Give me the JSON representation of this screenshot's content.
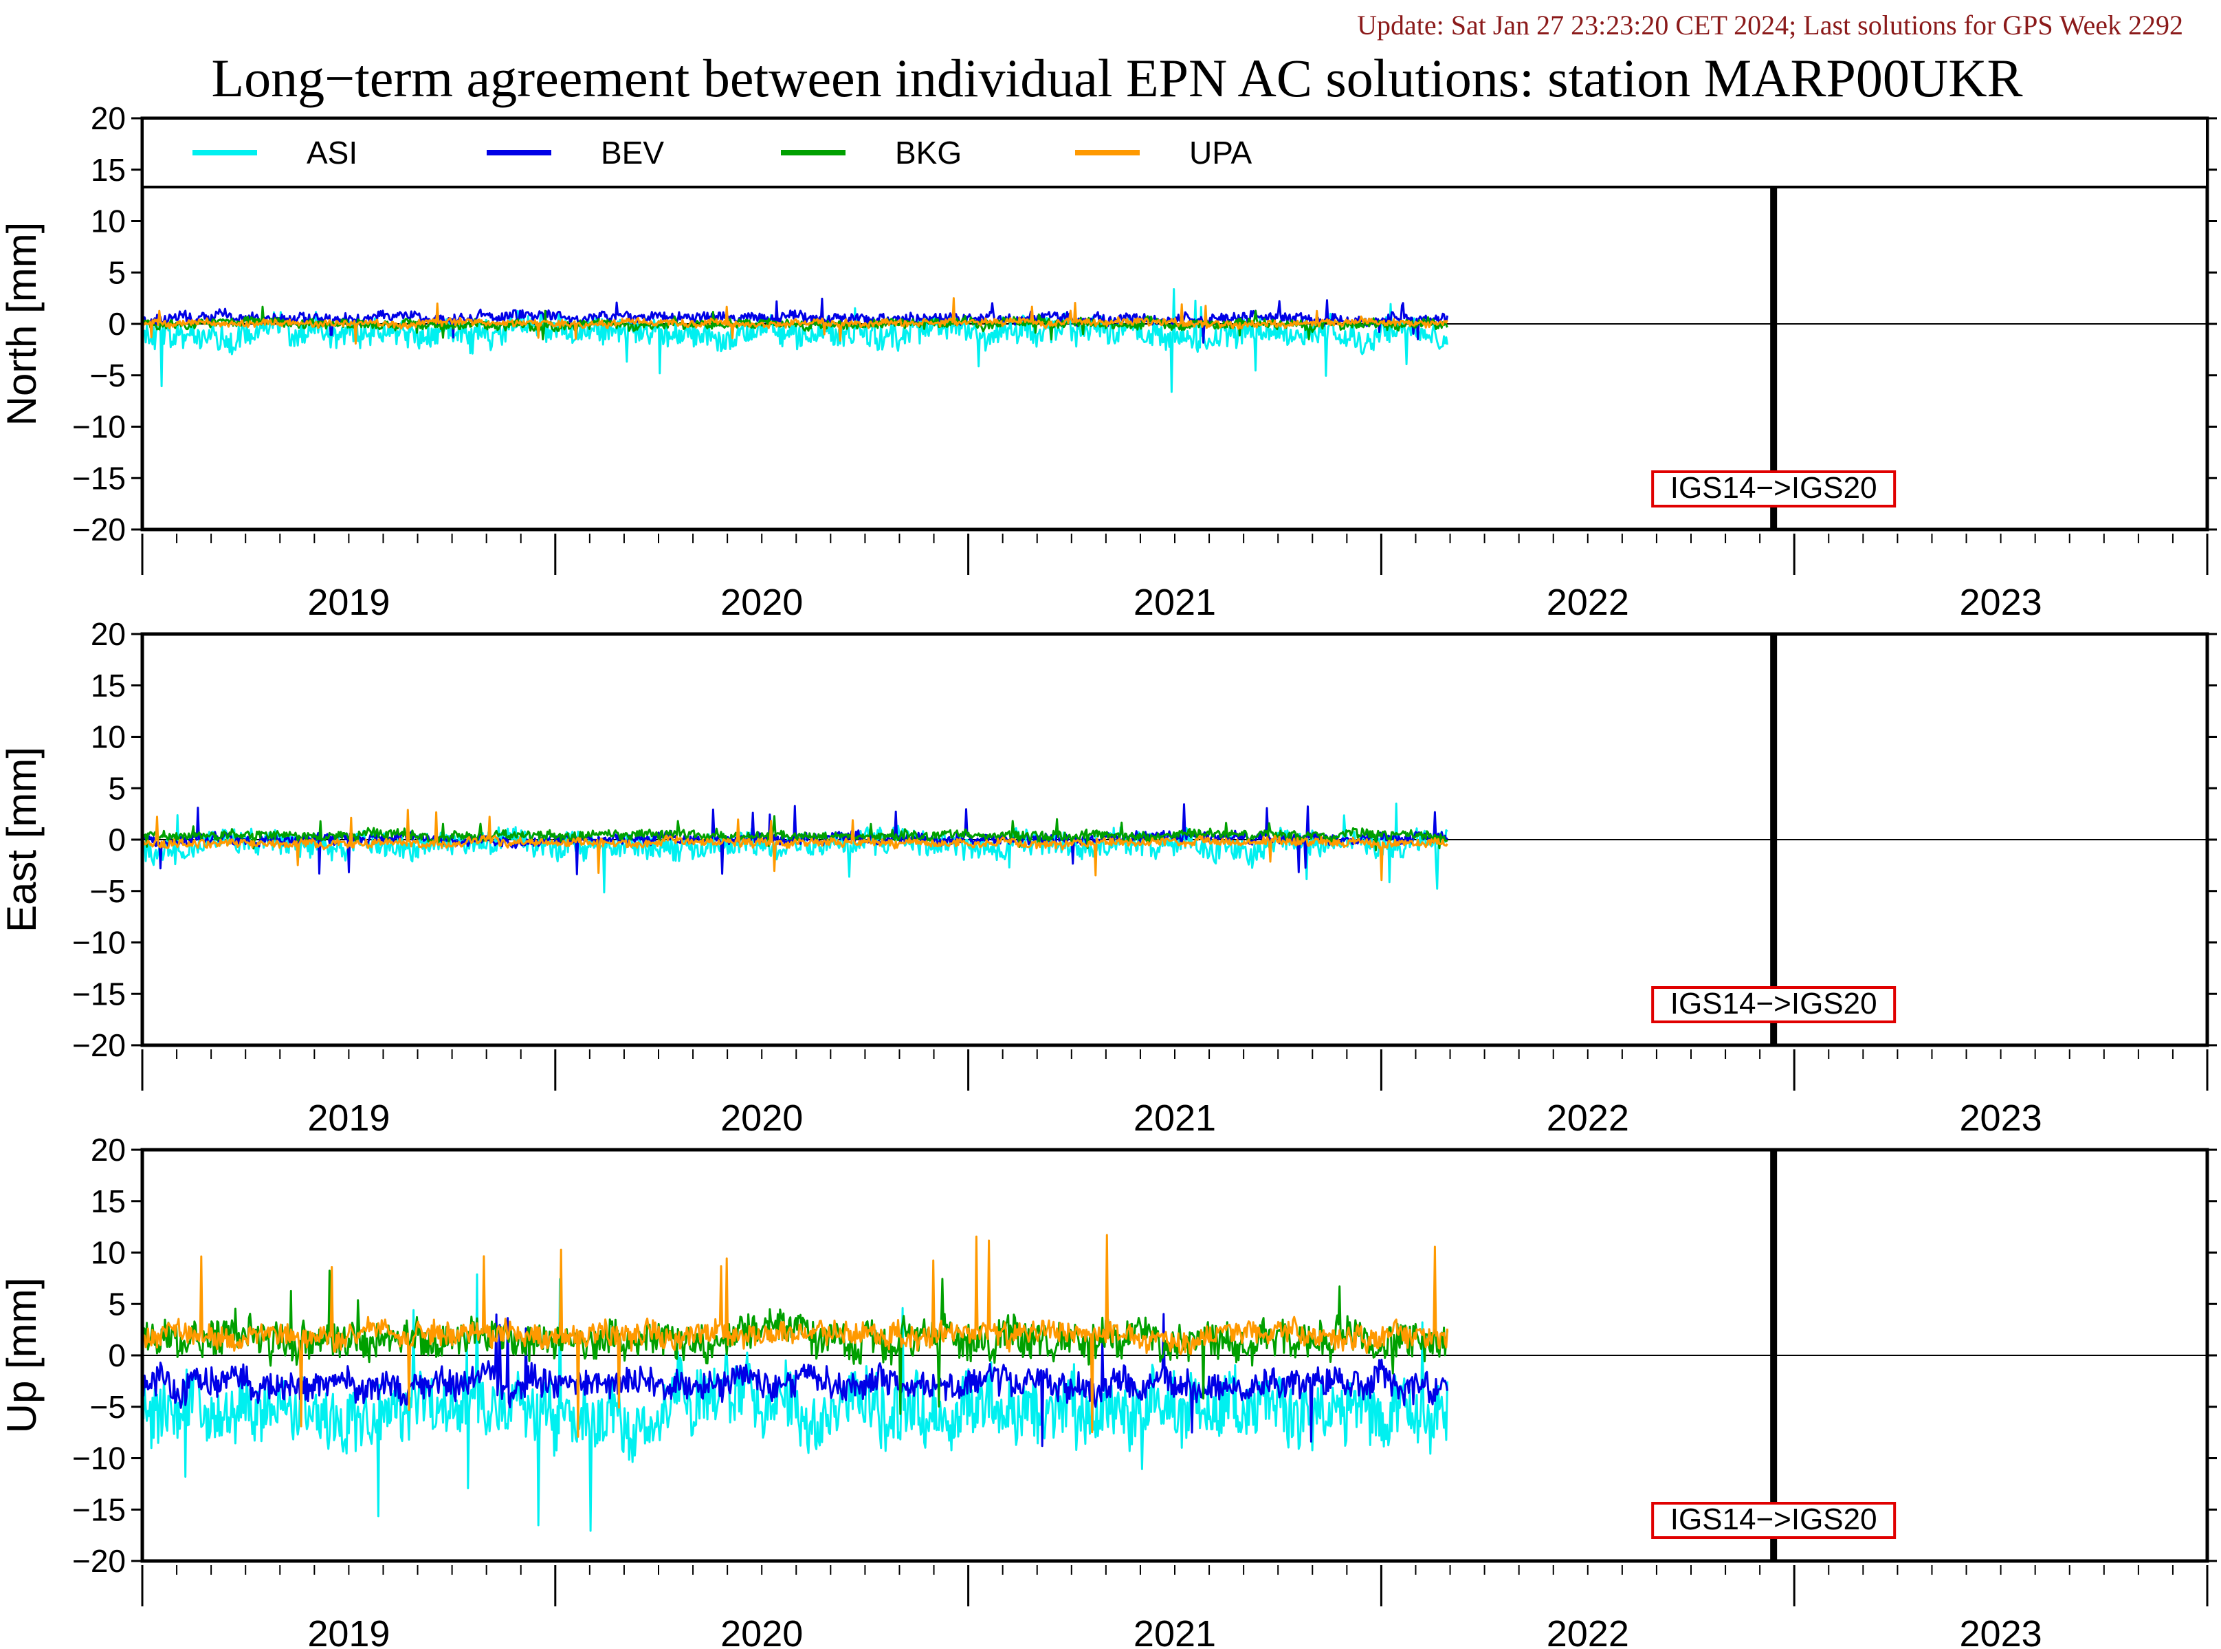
{
  "header": {
    "update_text": "Update: Sat Jan 27 23:23:20 CET 2024; Last solutions for GPS Week 2292",
    "title": "Long−term agreement between individual EPN AC solutions: station MARP00UKR"
  },
  "colors": {
    "update_text": "#8b1a1a",
    "frame": "#000000",
    "marker_box": "#e00000"
  },
  "legend": {
    "placement": "top (first panel, full width strip)",
    "entries": [
      {
        "label": "ASI",
        "color": "#00f0f0"
      },
      {
        "label": "BEV",
        "color": "#0000e6"
      },
      {
        "label": "BKG",
        "color": "#00a000"
      },
      {
        "label": "UPA",
        "color": "#ff9900"
      }
    ]
  },
  "chart_data": [
    {
      "type": "line",
      "ylabel": "North [mm]",
      "ylim": [
        -20,
        20
      ],
      "yticks": [
        "20",
        "15",
        "10",
        "5",
        "0",
        "−5",
        "−10",
        "−15",
        "−20"
      ],
      "xlim": [
        2018.5,
        2023.5
      ],
      "year_labels": [
        "2019",
        "2020",
        "2021",
        "2022",
        "2023"
      ],
      "data_range": [
        2018.5,
        2021.66
      ],
      "reference_frame_change": {
        "x": 2022.45,
        "label": "IGS14−>IGS20"
      },
      "series": [
        {
          "name": "ASI",
          "baseline": -0.8,
          "noise": 1.2,
          "spike": 4.5
        },
        {
          "name": "BEV",
          "baseline": 0.6,
          "noise": 0.45,
          "spike": 1.8
        },
        {
          "name": "BKG",
          "baseline": 0.0,
          "noise": 0.4,
          "spike": 1.5
        },
        {
          "name": "UPA",
          "baseline": 0.1,
          "noise": 0.3,
          "spike": 2.0
        }
      ]
    },
    {
      "type": "line",
      "ylabel": "East [mm]",
      "ylim": [
        -20,
        20
      ],
      "yticks": [
        "20",
        "15",
        "10",
        "5",
        "0",
        "−5",
        "−10",
        "−15",
        "−20"
      ],
      "xlim": [
        2018.5,
        2023.5
      ],
      "year_labels": [
        "2019",
        "2020",
        "2021",
        "2022",
        "2023"
      ],
      "data_range": [
        2018.5,
        2021.66
      ],
      "reference_frame_change": {
        "x": 2022.45,
        "label": "IGS14−>IGS20"
      },
      "series": [
        {
          "name": "ASI",
          "baseline": -0.6,
          "noise": 1.1,
          "spike": 4.0
        },
        {
          "name": "BEV",
          "baseline": 0.1,
          "noise": 0.45,
          "spike": 3.5
        },
        {
          "name": "BKG",
          "baseline": 0.4,
          "noise": 0.4,
          "spike": 1.5
        },
        {
          "name": "UPA",
          "baseline": -0.3,
          "noise": 0.35,
          "spike": 3.3
        }
      ]
    },
    {
      "type": "line",
      "ylabel": "Up [mm]",
      "ylim": [
        -20,
        20
      ],
      "yticks": [
        "20",
        "15",
        "10",
        "5",
        "0",
        "−5",
        "−10",
        "−15",
        "−20"
      ],
      "xlim": [
        2018.5,
        2023.5
      ],
      "year_labels": [
        "2019",
        "2020",
        "2021",
        "2022",
        "2023"
      ],
      "data_range": [
        2018.5,
        2021.66
      ],
      "reference_frame_change": {
        "x": 2022.45,
        "label": "IGS14−>IGS20"
      },
      "series": [
        {
          "name": "ASI",
          "baseline": -5.0,
          "noise": 2.8,
          "spike": 12.5
        },
        {
          "name": "BEV",
          "baseline": -2.8,
          "noise": 1.3,
          "spike": 7.0
        },
        {
          "name": "BKG",
          "baseline": 1.6,
          "noise": 1.6,
          "spike": 7.5
        },
        {
          "name": "UPA",
          "baseline": 1.9,
          "noise": 1.0,
          "spike": 9.0
        }
      ]
    }
  ]
}
